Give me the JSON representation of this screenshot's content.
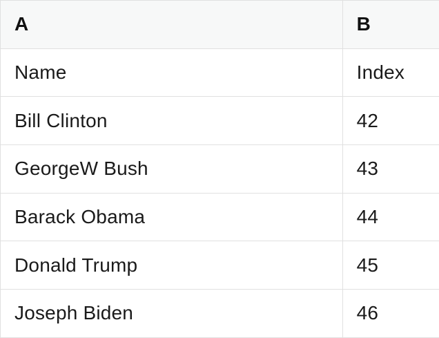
{
  "table": {
    "column_headers": [
      {
        "label": "A"
      },
      {
        "label": "B"
      }
    ],
    "rows": [
      {
        "A": "Name",
        "B": "Index"
      },
      {
        "A": "Bill Clinton",
        "B": "42"
      },
      {
        "A": "GeorgeW Bush",
        "B": "43"
      },
      {
        "A": "Barack Obama",
        "B": "44"
      },
      {
        "A": "Donald Trump",
        "B": "45"
      },
      {
        "A": "Joseph Biden",
        "B": "46"
      }
    ]
  },
  "colors": {
    "header_background": "#f7f8f8",
    "border": "#e0e0e0",
    "text": "#1a1a1a",
    "row_background": "#ffffff"
  }
}
